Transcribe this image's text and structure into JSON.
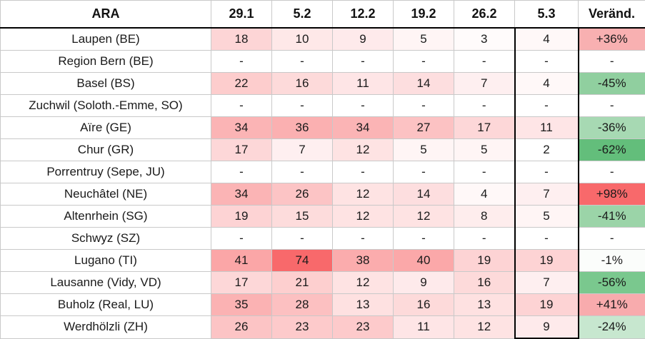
{
  "table": {
    "header": {
      "ara": "ARA",
      "dates": [
        "29.1",
        "5.2",
        "12.2",
        "19.2",
        "26.2",
        "5.3"
      ],
      "change_label": "Veränd."
    },
    "highlight_column": "5.3",
    "heatmap": {
      "min": 2,
      "max": 74,
      "gamma": 0.85,
      "low_color": "#FFFFFF",
      "high_color": "#F8696B"
    },
    "change_scale_colors": {
      "positive_max": "#F8696B",
      "negative_max": "#63BE7B",
      "neutral": "#FFFFFF"
    },
    "rows": [
      {
        "name": "Laupen (BE)",
        "values": [
          18,
          10,
          9,
          5,
          3,
          4
        ],
        "change": "+36%",
        "change_color": "#F8B0B1"
      },
      {
        "name": "Region Bern (BE)",
        "values": [
          "-",
          "-",
          "-",
          "-",
          "-",
          "-"
        ],
        "change": "-",
        "change_color": "#FFFFFF"
      },
      {
        "name": "Basel (BS)",
        "values": [
          22,
          16,
          11,
          14,
          7,
          4
        ],
        "change": "-45%",
        "change_color": "#90CF9F"
      },
      {
        "name": "Zuchwil (Soloth.-Emme, SO)",
        "values": [
          "-",
          "-",
          "-",
          "-",
          "-",
          "-"
        ],
        "change": "-",
        "change_color": "#FFFFFF"
      },
      {
        "name": "Aïre (GE)",
        "values": [
          34,
          36,
          34,
          27,
          17,
          11
        ],
        "change": "-36%",
        "change_color": "#A7D9B3"
      },
      {
        "name": "Chur (GR)",
        "values": [
          17,
          7,
          12,
          5,
          5,
          2
        ],
        "change": "-62%",
        "change_color": "#63BE7B"
      },
      {
        "name": "Porrentruy (Sepe, JU)",
        "values": [
          "-",
          "-",
          "-",
          "-",
          "-",
          "-"
        ],
        "change": "-",
        "change_color": "#FFFFFF"
      },
      {
        "name": "Neuchâtel (NE)",
        "values": [
          34,
          26,
          12,
          14,
          4,
          7
        ],
        "change": "+98%",
        "change_color": "#F8696B"
      },
      {
        "name": "Altenrhein (SG)",
        "values": [
          19,
          15,
          12,
          12,
          8,
          5
        ],
        "change": "-41%",
        "change_color": "#9BD4A8"
      },
      {
        "name": "Schwyz (SZ)",
        "values": [
          "-",
          "-",
          "-",
          "-",
          "-",
          "-"
        ],
        "change": "-",
        "change_color": "#FFFFFF"
      },
      {
        "name": "Lugano (TI)",
        "values": [
          41,
          74,
          38,
          40,
          19,
          19
        ],
        "change": "-1%",
        "change_color": "#FBFDFB"
      },
      {
        "name": "Lausanne (Vidy, VD)",
        "values": [
          17,
          21,
          12,
          9,
          16,
          7
        ],
        "change": "-56%",
        "change_color": "#7AC88E"
      },
      {
        "name": "Buholz (Real, LU)",
        "values": [
          35,
          28,
          13,
          16,
          13,
          19
        ],
        "change": "+41%",
        "change_color": "#F8ABAD"
      },
      {
        "name": "Werdhölzli (ZH)",
        "values": [
          26,
          23,
          23,
          11,
          12,
          9
        ],
        "change": "-24%",
        "change_color": "#C7E7CF"
      }
    ]
  }
}
